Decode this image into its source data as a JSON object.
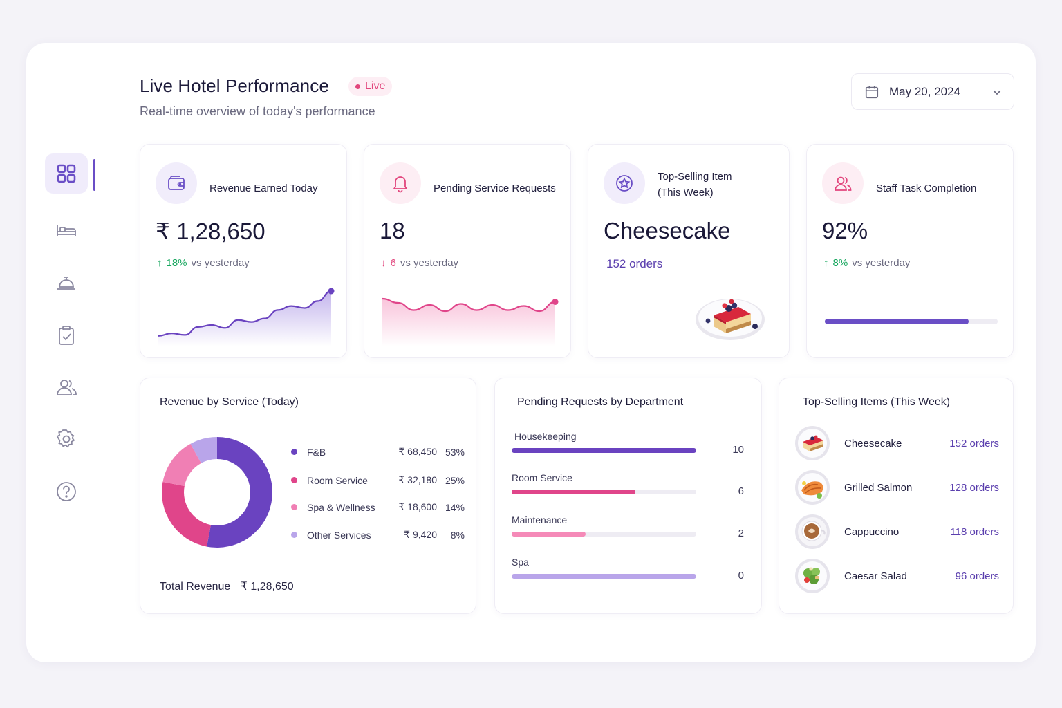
{
  "header": {
    "title": "Live Hotel Performance",
    "live_label": "Live",
    "subtitle": "Real-time overview of today's performance",
    "date": "May 20, 2024"
  },
  "sidebar": {
    "items": [
      {
        "name": "dashboard",
        "icon": "grid-icon",
        "active": true
      },
      {
        "name": "rooms",
        "icon": "bed-icon",
        "active": false
      },
      {
        "name": "services",
        "icon": "service-bell-icon",
        "active": false
      },
      {
        "name": "tasks",
        "icon": "clipboard-check-icon",
        "active": false
      },
      {
        "name": "staff",
        "icon": "users-icon",
        "active": false
      },
      {
        "name": "settings",
        "icon": "gear-icon",
        "active": false
      },
      {
        "name": "help",
        "icon": "help-circle-icon",
        "active": false
      }
    ]
  },
  "kpis": {
    "revenue": {
      "label": "Revenue Earned Today",
      "value": "₹ 1,28,650",
      "delta": "18%",
      "delta_text": "vs yesterday",
      "icon": "wallet-icon"
    },
    "pending": {
      "label": "Pending Service Requests",
      "value": "18",
      "delta": "6",
      "delta_text": "vs yesterday",
      "icon": "bell-icon"
    },
    "top_item": {
      "label_line1": "Top-Selling Item",
      "label_line2": "(This Week)",
      "value": "Cheesecake",
      "sub": "152 orders",
      "icon": "star-icon"
    },
    "staff": {
      "label": "Staff Task Completion",
      "value": "92%",
      "delta": "8%",
      "delta_text": "vs yesterday",
      "icon": "users-icon",
      "progress": 0.83
    }
  },
  "revenue_by_service": {
    "title": "Revenue by Service (Today)",
    "total_label": "Total Revenue",
    "total_value": "₹ 1,28,650",
    "rows": [
      {
        "name": "F&B",
        "amount": "₹ 68,450",
        "pct": "53%",
        "share": 53,
        "color": "#6a43c0"
      },
      {
        "name": "Room Service",
        "amount": "₹ 32,180",
        "pct": "25%",
        "share": 25,
        "color": "#e0458a"
      },
      {
        "name": "Spa & Wellness",
        "amount": "₹ 18,600",
        "pct": "14%",
        "share": 14,
        "color": "#f07fb4"
      },
      {
        "name": "Other Services",
        "amount": "₹ 9,420",
        "pct": "8%",
        "share": 8,
        "color": "#b9a5ea"
      }
    ]
  },
  "pending_by_department": {
    "title": "Pending Requests by Department",
    "rows": [
      {
        "name": "Housekeeping",
        "count": "10",
        "fill": 1.0,
        "color": "#6a43c0"
      },
      {
        "name": "Room Service",
        "count": "6",
        "fill": 0.67,
        "color": "#e0458a"
      },
      {
        "name": "Maintenance",
        "count": "2",
        "fill": 0.4,
        "color": "#f58ab8"
      },
      {
        "name": "Spa",
        "count": "0",
        "fill": 1.0,
        "color": "#b9a5ea"
      }
    ]
  },
  "top_selling": {
    "title": "Top-Selling Items (This Week)",
    "items": [
      {
        "name": "Cheesecake",
        "orders": "152 orders"
      },
      {
        "name": "Grilled Salmon",
        "orders": "128 orders"
      },
      {
        "name": "Cappuccino",
        "orders": "118 orders"
      },
      {
        "name": "Caesar Salad",
        "orders": "96 orders"
      }
    ]
  },
  "chart_data": [
    {
      "type": "line",
      "series": [
        {
          "values": [
            0.1,
            0.15,
            0.12,
            0.28,
            0.32,
            0.26,
            0.42,
            0.38,
            0.45,
            0.62,
            0.7,
            0.66,
            0.8,
            1.0
          ]
        }
      ]
    },
    {
      "type": "line",
      "series": [
        {
          "values": [
            0.9,
            0.7,
            0.35,
            0.6,
            0.3,
            0.65,
            0.35,
            0.6,
            0.35,
            0.55,
            0.3,
            0.75
          ]
        }
      ]
    }
  ]
}
